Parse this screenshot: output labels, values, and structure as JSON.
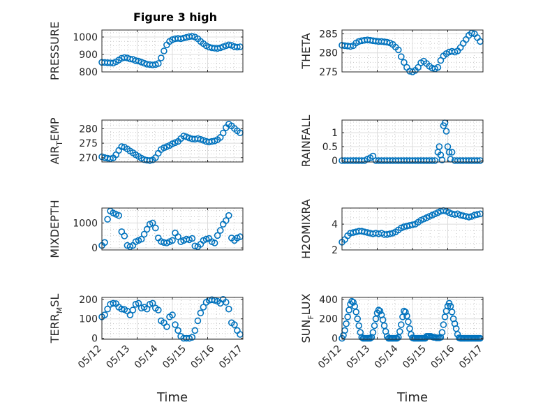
{
  "colors": {
    "marker": "#0072BD",
    "axis": "#262626"
  },
  "chart_data": [
    {
      "id": "pressure",
      "type": "scatter",
      "title": "Figure 3 high",
      "ylabel": "PRESSURE",
      "ylim": [
        800,
        1040
      ],
      "yticks": [
        800,
        900,
        1000
      ],
      "xlim": [
        0,
        4
      ],
      "grid": true,
      "minor_grid": true,
      "show_xticklabels": false,
      "x": [
        0,
        0.08,
        0.16,
        0.24,
        0.32,
        0.4,
        0.48,
        0.56,
        0.64,
        0.72,
        0.8,
        0.88,
        0.96,
        1.04,
        1.12,
        1.2,
        1.28,
        1.36,
        1.44,
        1.52,
        1.6,
        1.68,
        1.76,
        1.84,
        1.92,
        2,
        2.08,
        2.16,
        2.24,
        2.32,
        2.4,
        2.48,
        2.56,
        2.64,
        2.72,
        2.8,
        2.88,
        2.96,
        3.04,
        3.12,
        3.2,
        3.28,
        3.36,
        3.44,
        3.52,
        3.6,
        3.68,
        3.76,
        3.84,
        3.92
      ],
      "y": [
        855,
        854,
        853,
        852,
        851,
        858,
        868,
        878,
        882,
        880,
        874,
        872,
        865,
        862,
        856,
        850,
        844,
        842,
        840,
        842,
        848,
        880,
        920,
        955,
        975,
        985,
        990,
        992,
        990,
        994,
        998,
        1002,
        1004,
        1000,
        990,
        975,
        962,
        950,
        942,
        938,
        936,
        935,
        938,
        944,
        950,
        955,
        952,
        945,
        942,
        944
      ]
    },
    {
      "id": "theta",
      "type": "scatter",
      "ylabel": "THETA",
      "ylim": [
        275,
        286
      ],
      "yticks": [
        275,
        280,
        285
      ],
      "xlim": [
        0,
        4
      ],
      "grid": true,
      "minor_grid": true,
      "show_xticklabels": false,
      "x": [
        0,
        0.08,
        0.16,
        0.24,
        0.32,
        0.4,
        0.48,
        0.56,
        0.64,
        0.72,
        0.8,
        0.88,
        0.96,
        1.04,
        1.12,
        1.2,
        1.28,
        1.36,
        1.44,
        1.52,
        1.6,
        1.68,
        1.76,
        1.84,
        1.92,
        2,
        2.08,
        2.16,
        2.24,
        2.32,
        2.4,
        2.48,
        2.56,
        2.64,
        2.72,
        2.8,
        2.88,
        2.96,
        3.04,
        3.12,
        3.2,
        3.28,
        3.36,
        3.44,
        3.52,
        3.6,
        3.68,
        3.76,
        3.84,
        3.92
      ],
      "y": [
        282,
        281.9,
        281.8,
        281.7,
        281.9,
        282.6,
        283,
        283.2,
        283.3,
        283.4,
        283.3,
        283.2,
        283.1,
        283,
        283,
        282.9,
        282.8,
        282.6,
        282.2,
        281.5,
        280.8,
        279,
        277.5,
        276.2,
        275.2,
        275,
        275.4,
        276.2,
        277.4,
        277.8,
        277.2,
        276.5,
        276,
        275.8,
        276.2,
        278,
        279.2,
        279.8,
        280.2,
        280.4,
        280.2,
        280.5,
        281.4,
        282.5,
        283.5,
        284.6,
        285.2,
        285,
        284,
        283
      ]
    },
    {
      "id": "air_temp",
      "type": "scatter",
      "ylabel": "AIR_TEMP",
      "ylabel_parts": [
        "AIR",
        "T",
        "EMP"
      ],
      "ylim": [
        268.5,
        283
      ],
      "yticks": [
        270,
        275,
        280
      ],
      "xlim": [
        0,
        4
      ],
      "grid": true,
      "minor_grid": true,
      "show_xticklabels": false,
      "x": [
        0,
        0.08,
        0.16,
        0.24,
        0.32,
        0.4,
        0.48,
        0.56,
        0.64,
        0.72,
        0.8,
        0.88,
        0.96,
        1.04,
        1.12,
        1.2,
        1.28,
        1.36,
        1.44,
        1.52,
        1.6,
        1.68,
        1.76,
        1.84,
        1.92,
        2,
        2.08,
        2.16,
        2.24,
        2.32,
        2.4,
        2.48,
        2.56,
        2.64,
        2.72,
        2.8,
        2.88,
        2.96,
        3.04,
        3.12,
        3.2,
        3.28,
        3.36,
        3.44,
        3.52,
        3.6,
        3.68,
        3.76,
        3.84,
        3.92
      ],
      "y": [
        270.3,
        270,
        269.8,
        269.6,
        269.9,
        271,
        272.5,
        273.8,
        273.6,
        273,
        272.3,
        271.7,
        271,
        270.4,
        269.8,
        269.3,
        269.1,
        269,
        269.2,
        270,
        271.5,
        272.8,
        273.4,
        273.8,
        274.2,
        274.8,
        275.2,
        275.6,
        276.6,
        277.5,
        277.2,
        276.8,
        276.5,
        276.4,
        276.6,
        276.3,
        276,
        275.6,
        275.4,
        275.6,
        275.8,
        276.2,
        277,
        278.5,
        280.4,
        281.6,
        281,
        280.1,
        279.3,
        278.6
      ]
    },
    {
      "id": "rainfall",
      "type": "scatter",
      "ylabel": "RAINFALL",
      "ylim": [
        -0.05,
        1.45
      ],
      "yticks": [
        0,
        0.5,
        1
      ],
      "xlim": [
        0,
        4
      ],
      "grid": true,
      "minor_grid": true,
      "show_xticklabels": false,
      "x": [
        0,
        0.08,
        0.16,
        0.24,
        0.32,
        0.4,
        0.48,
        0.56,
        0.64,
        0.72,
        0.8,
        0.88,
        0.96,
        1.04,
        1.12,
        1.2,
        1.28,
        1.36,
        1.44,
        1.52,
        1.6,
        1.68,
        1.76,
        1.84,
        1.92,
        2,
        2.08,
        2.16,
        2.24,
        2.32,
        2.4,
        2.48,
        2.56,
        2.64,
        2.72,
        2.76,
        2.8,
        2.84,
        2.88,
        2.92,
        2.96,
        3,
        3.04,
        3.08,
        3.12,
        3.2,
        3.28,
        3.36,
        3.44,
        3.52,
        3.6,
        3.68,
        3.76,
        3.84,
        3.92
      ],
      "y": [
        0,
        0,
        0,
        0,
        0,
        0,
        0,
        0,
        0,
        0.05,
        0.1,
        0.16,
        0,
        0,
        0,
        0,
        0,
        0,
        0,
        0,
        0,
        0,
        0,
        0,
        0,
        0,
        0,
        0,
        0,
        0,
        0,
        0,
        0,
        0,
        0.3,
        0.5,
        0.2,
        0.02,
        1.25,
        1.35,
        1.05,
        0.5,
        0.3,
        0.05,
        0.3,
        0,
        0,
        0,
        0,
        0,
        0,
        0,
        0,
        0,
        0
      ]
    },
    {
      "id": "mixdepth",
      "type": "scatter",
      "ylabel": "MIXDEPTH",
      "ylim": [
        -80,
        1600
      ],
      "yticks": [
        0,
        1000
      ],
      "xlim": [
        0,
        4
      ],
      "grid": true,
      "minor_grid": true,
      "show_xticklabels": false,
      "x": [
        0,
        0.08,
        0.16,
        0.24,
        0.32,
        0.4,
        0.48,
        0.56,
        0.64,
        0.72,
        0.8,
        0.88,
        0.96,
        1.04,
        1.12,
        1.2,
        1.28,
        1.36,
        1.44,
        1.52,
        1.6,
        1.68,
        1.76,
        1.84,
        1.92,
        2,
        2.08,
        2.16,
        2.24,
        2.32,
        2.4,
        2.48,
        2.56,
        2.64,
        2.72,
        2.8,
        2.88,
        2.96,
        3.04,
        3.12,
        3.2,
        3.28,
        3.36,
        3.44,
        3.52,
        3.6,
        3.68,
        3.76,
        3.84,
        3.92
      ],
      "y": [
        100,
        220,
        1150,
        1480,
        1400,
        1350,
        1300,
        650,
        480,
        100,
        50,
        100,
        250,
        300,
        350,
        550,
        750,
        950,
        1000,
        800,
        400,
        260,
        220,
        200,
        250,
        300,
        600,
        450,
        250,
        300,
        350,
        330,
        380,
        80,
        50,
        150,
        300,
        350,
        380,
        250,
        200,
        500,
        700,
        950,
        1100,
        1300,
        400,
        300,
        400,
        450
      ]
    },
    {
      "id": "h2omixra",
      "type": "scatter",
      "ylabel": "H2OMIXRA",
      "ylim": [
        2,
        5.25
      ],
      "yticks": [
        2,
        4
      ],
      "xlim": [
        0,
        4
      ],
      "grid": true,
      "minor_grid": true,
      "show_xticklabels": false,
      "x": [
        0,
        0.08,
        0.16,
        0.24,
        0.32,
        0.4,
        0.48,
        0.56,
        0.64,
        0.72,
        0.8,
        0.88,
        0.96,
        1.04,
        1.12,
        1.2,
        1.28,
        1.36,
        1.44,
        1.52,
        1.6,
        1.68,
        1.76,
        1.84,
        1.92,
        2,
        2.08,
        2.16,
        2.24,
        2.32,
        2.4,
        2.48,
        2.56,
        2.64,
        2.72,
        2.8,
        2.88,
        2.96,
        3.04,
        3.12,
        3.2,
        3.28,
        3.36,
        3.44,
        3.52,
        3.6,
        3.68,
        3.76,
        3.84,
        3.92
      ],
      "y": [
        2.6,
        2.8,
        3.1,
        3.3,
        3.35,
        3.4,
        3.45,
        3.45,
        3.4,
        3.35,
        3.3,
        3.25,
        3.3,
        3.25,
        3.3,
        3.2,
        3.2,
        3.25,
        3.3,
        3.4,
        3.55,
        3.7,
        3.8,
        3.85,
        3.9,
        3.95,
        4,
        4.15,
        4.3,
        4.4,
        4.5,
        4.6,
        4.7,
        4.8,
        4.9,
        5,
        5.05,
        5,
        4.9,
        4.8,
        4.75,
        4.8,
        4.7,
        4.65,
        4.6,
        4.55,
        4.6,
        4.7,
        4.75,
        4.8
      ]
    },
    {
      "id": "terr_msl",
      "type": "scatter",
      "ylabel": "TERR_MSL",
      "ylabel_parts": [
        "TERR",
        "M",
        "SL"
      ],
      "ylim": [
        -5,
        210
      ],
      "yticks": [
        0,
        100,
        200
      ],
      "xlim": [
        0,
        4
      ],
      "grid": true,
      "minor_grid": true,
      "show_xticklabels": true,
      "xticklabels": [
        "05/12",
        "05/13",
        "05/14",
        "05/15",
        "05/16",
        "05/17"
      ],
      "xlabel": "Time",
      "x": [
        0,
        0.08,
        0.16,
        0.24,
        0.32,
        0.4,
        0.48,
        0.56,
        0.64,
        0.72,
        0.8,
        0.88,
        0.96,
        1.04,
        1.12,
        1.2,
        1.28,
        1.36,
        1.44,
        1.52,
        1.6,
        1.68,
        1.76,
        1.84,
        1.92,
        2,
        2.08,
        2.16,
        2.24,
        2.32,
        2.4,
        2.48,
        2.56,
        2.64,
        2.72,
        2.8,
        2.88,
        2.96,
        3.04,
        3.12,
        3.2,
        3.28,
        3.36,
        3.44,
        3.52,
        3.6,
        3.68,
        3.76,
        3.84,
        3.92
      ],
      "y": [
        110,
        120,
        150,
        175,
        180,
        178,
        160,
        150,
        148,
        140,
        120,
        145,
        175,
        180,
        155,
        160,
        150,
        175,
        180,
        155,
        145,
        90,
        80,
        60,
        110,
        120,
        70,
        40,
        10,
        0,
        0,
        0,
        5,
        40,
        90,
        130,
        160,
        185,
        195,
        198,
        195,
        190,
        180,
        200,
        185,
        150,
        80,
        70,
        40,
        20
      ]
    },
    {
      "id": "sun_flux",
      "type": "scatter",
      "ylabel": "SUN_FLUX",
      "ylabel_parts": [
        "SUN",
        "F",
        "LUX"
      ],
      "ylim": [
        -10,
        420
      ],
      "yticks": [
        0,
        200,
        400
      ],
      "xlim": [
        0,
        4
      ],
      "grid": true,
      "minor_grid": true,
      "show_xticklabels": true,
      "xticklabels": [
        "05/12",
        "05/13",
        "05/14",
        "05/15",
        "05/16",
        "05/17"
      ],
      "xlabel": "Time",
      "x": [
        0,
        0.04,
        0.08,
        0.12,
        0.16,
        0.2,
        0.24,
        0.28,
        0.32,
        0.36,
        0.4,
        0.44,
        0.48,
        0.52,
        0.56,
        0.6,
        0.64,
        0.68,
        0.72,
        0.76,
        0.8,
        0.84,
        0.88,
        0.92,
        0.96,
        1,
        1.04,
        1.08,
        1.12,
        1.16,
        1.2,
        1.24,
        1.28,
        1.32,
        1.36,
        1.4,
        1.44,
        1.48,
        1.52,
        1.56,
        1.6,
        1.64,
        1.68,
        1.72,
        1.76,
        1.8,
        1.84,
        1.88,
        1.92,
        1.96,
        2,
        2.04,
        2.08,
        2.12,
        2.16,
        2.2,
        2.24,
        2.28,
        2.32,
        2.36,
        2.4,
        2.44,
        2.48,
        2.52,
        2.56,
        2.6,
        2.64,
        2.68,
        2.72,
        2.76,
        2.8,
        2.84,
        2.88,
        2.92,
        2.96,
        3,
        3.04,
        3.08,
        3.12,
        3.16,
        3.2,
        3.24,
        3.28,
        3.32,
        3.36,
        3.4,
        3.44,
        3.48,
        3.52,
        3.56,
        3.6,
        3.64,
        3.68,
        3.72,
        3.76,
        3.8,
        3.84,
        3.88,
        3.92
      ],
      "y": [
        0,
        30,
        80,
        150,
        220,
        290,
        350,
        380,
        370,
        330,
        270,
        200,
        130,
        60,
        10,
        0,
        0,
        0,
        0,
        0,
        0,
        10,
        60,
        130,
        200,
        260,
        290,
        280,
        240,
        190,
        130,
        70,
        20,
        0,
        0,
        0,
        0,
        0,
        0,
        0,
        10,
        70,
        140,
        220,
        280,
        270,
        230,
        170,
        100,
        40,
        5,
        0,
        0,
        0,
        0,
        0,
        0,
        0,
        0,
        0,
        20,
        20,
        20,
        20,
        15,
        10,
        10,
        5,
        5,
        5,
        10,
        60,
        140,
        220,
        280,
        330,
        360,
        330,
        270,
        200,
        150,
        100,
        40,
        5,
        0,
        0,
        0,
        0,
        0,
        0,
        0,
        0,
        0,
        0,
        0,
        0,
        0,
        0,
        0
      ]
    }
  ]
}
